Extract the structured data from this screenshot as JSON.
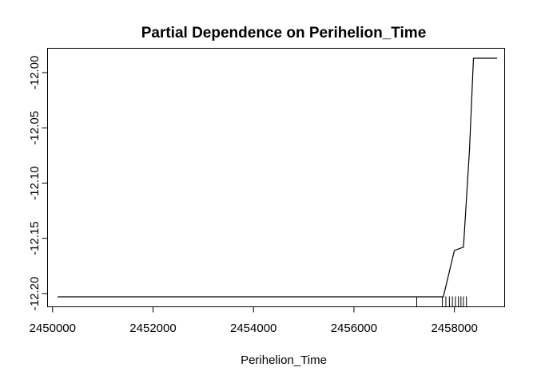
{
  "chart_data": {
    "type": "line",
    "title": "Partial Dependence on  Perihelion_Time",
    "xlabel": "Perihelion_Time",
    "ylabel": "",
    "xlim": [
      2449900,
      2459000
    ],
    "ylim": [
      -12.212,
      -11.978
    ],
    "x_ticks": [
      2450000,
      2452000,
      2454000,
      2456000,
      2458000
    ],
    "x_tick_labels": [
      "2450000",
      "2452000",
      "2454000",
      "2456000",
      "2458000"
    ],
    "y_ticks": [
      -12.2,
      -12.15,
      -12.1,
      -12.05,
      -12.0
    ],
    "y_tick_labels": [
      "-12.20",
      "-12.15",
      "-12.10",
      "-12.05",
      "-12.00"
    ],
    "grid": false,
    "series": [
      {
        "x": [
          2450100,
          2457780,
          2458000,
          2458180,
          2458300,
          2458380,
          2458850
        ],
        "y": [
          -12.203,
          -12.203,
          -12.161,
          -12.158,
          -12.07,
          -11.987,
          -11.987
        ]
      }
    ],
    "rug": [
      2457250,
      2457760,
      2457830,
      2457900,
      2457960,
      2458020,
      2458080,
      2458130,
      2458180,
      2458240
    ],
    "colors": {
      "line": "#000000",
      "background": "#ffffff"
    }
  }
}
